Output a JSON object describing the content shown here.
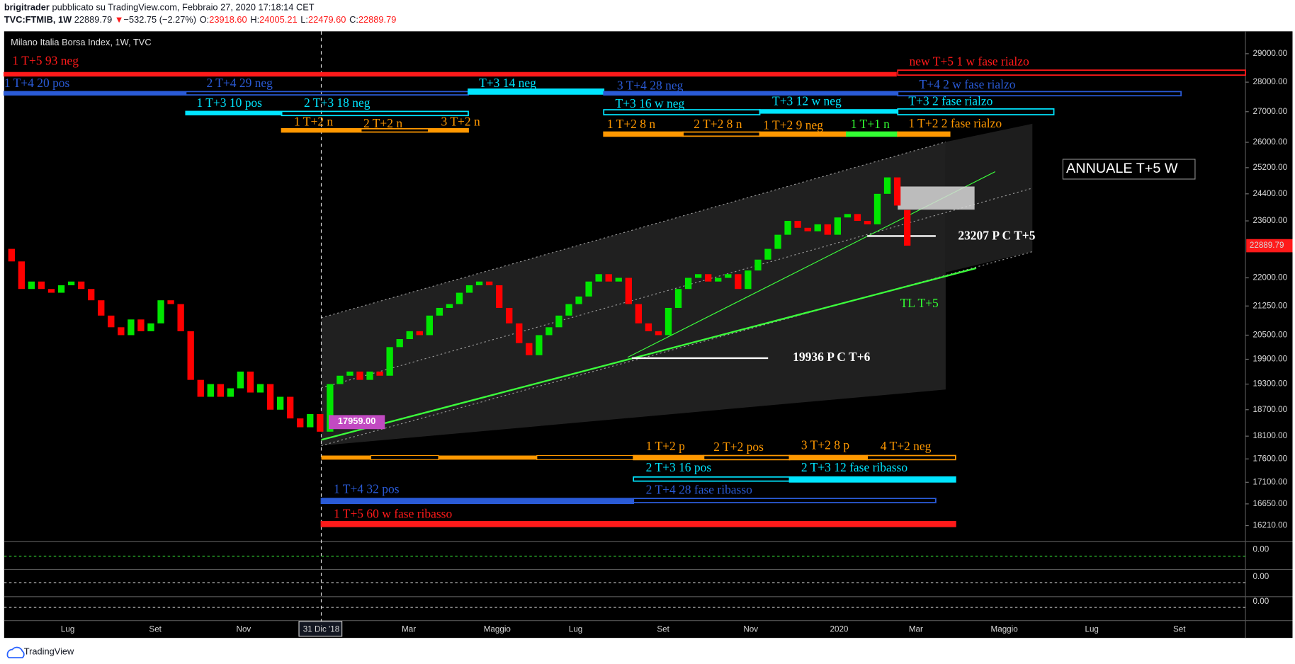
{
  "header": {
    "author": "brigitrader",
    "published": "pubblicato su TradingView.com, Febbraio 27, 2020 17:18:14 CET",
    "symbol": "TVC:FTMIB, 1W",
    "last": "22889.79",
    "arrow": "▼",
    "change": "−532.75 (−2.27%)",
    "ohlc": [
      {
        "label": "O:",
        "value": "23918.60"
      },
      {
        "label": "H:",
        "value": "24005.21"
      },
      {
        "label": "L:",
        "value": "22479.60"
      },
      {
        "label": "C:",
        "value": "22889.79"
      }
    ]
  },
  "pane_title": "Milano Italia Borsa Index, 1W, TVC",
  "chart": {
    "type": "candlestick",
    "scale": "log",
    "up_color": "#00e600",
    "down_color": "#ff0000",
    "open": [
      22800,
      22450,
      21700,
      21900,
      21700,
      21600,
      21800,
      21900,
      21700,
      21400,
      21000,
      20700,
      20500,
      20900,
      20600,
      20800,
      21400,
      21300,
      20600,
      19400,
      19000,
      19300,
      19000,
      19200,
      19600,
      19100,
      19300,
      18700,
      19000,
      18500,
      18300,
      18600,
      18200,
      19300,
      19500,
      19600,
      19400,
      19600,
      19500,
      20200,
      20400,
      20600,
      20500,
      21000,
      21200,
      21300,
      21600,
      21800,
      21900,
      21800,
      21200,
      20800,
      20300,
      20000,
      20500,
      20700,
      21000,
      21300,
      21500,
      21900,
      22100,
      21900,
      22000,
      21300,
      20800,
      20600,
      20500,
      21200,
      21700,
      22000,
      22100,
      21900,
      22000,
      22100,
      21700,
      22200,
      22500,
      22800,
      23200,
      23600,
      23400,
      23300,
      23500,
      23200,
      23700,
      23800,
      23600,
      23500,
      24400,
      24900,
      23918.6
    ],
    "close": [
      22450,
      21700,
      21900,
      21700,
      21600,
      21800,
      21900,
      21700,
      21400,
      21000,
      20700,
      20500,
      20900,
      20600,
      20800,
      21400,
      21300,
      20600,
      19400,
      19000,
      19300,
      19000,
      19200,
      19600,
      19100,
      19300,
      18700,
      19000,
      18500,
      18300,
      18600,
      18200,
      19300,
      19500,
      19600,
      19400,
      19600,
      19500,
      20200,
      20400,
      20600,
      20500,
      21000,
      21200,
      21300,
      21600,
      21800,
      21900,
      21800,
      21200,
      20800,
      20300,
      20000,
      20500,
      20700,
      21000,
      21300,
      21500,
      21900,
      22100,
      21900,
      22000,
      21300,
      20800,
      20600,
      20500,
      21200,
      21700,
      22000,
      22100,
      21900,
      22000,
      22100,
      21700,
      22200,
      22500,
      22800,
      23200,
      23600,
      23400,
      23300,
      23500,
      23200,
      23700,
      23800,
      23600,
      23500,
      24400,
      24900,
      24050,
      22889.79
    ],
    "ylim": [
      15915,
      29810
    ],
    "yticks": [
      {
        "value": 29000,
        "label": "29000.00"
      },
      {
        "value": 28000,
        "label": "28000.00"
      },
      {
        "value": 27000,
        "label": "27000.00"
      },
      {
        "value": 26000,
        "label": "26000.00"
      },
      {
        "value": 25200,
        "label": "25200.00"
      },
      {
        "value": 24400,
        "label": "24400.00"
      },
      {
        "value": 23600,
        "label": "23600.00"
      },
      {
        "value": 22000,
        "label": "22000.00"
      },
      {
        "value": 21250,
        "label": "21250.00"
      },
      {
        "value": 20500,
        "label": "20500.00"
      },
      {
        "value": 19900,
        "label": "19900.00"
      },
      {
        "value": 19300,
        "label": "19300.00"
      },
      {
        "value": 18700,
        "label": "18700.00"
      },
      {
        "value": 18100,
        "label": "18100.00"
      },
      {
        "value": 17600,
        "label": "17600.00"
      },
      {
        "value": 17100,
        "label": "17100.00"
      },
      {
        "value": 16650,
        "label": "16650.00"
      },
      {
        "value": 16210,
        "label": "16210.00"
      }
    ],
    "last_price": {
      "value": 22889.79,
      "label": "22889.79"
    },
    "low_label": "17959.00"
  },
  "sub_panes": [
    {
      "yticks": [
        {
          "value": 0,
          "label": "0.00"
        }
      ]
    },
    {
      "yticks": [
        {
          "value": 0,
          "label": "0.00"
        }
      ]
    },
    {
      "yticks": [
        {
          "value": 0,
          "label": "0.00"
        }
      ]
    }
  ],
  "time_labels": [
    "Lug",
    "Set",
    "Nov",
    "31 Dic '18",
    "Mar",
    "Maggio",
    "Lug",
    "Set",
    "Nov",
    "2020",
    "Mar",
    "Maggio",
    "Lug",
    "Set"
  ],
  "annotations": [
    {
      "text": "1 T+5 93 neg",
      "color": "#ff1a1a"
    },
    {
      "text": "new T+5 1 w fase rialzo",
      "color": "#ff1a1a"
    },
    {
      "text": "1 T+4 20 pos",
      "color": "#2a5bd7"
    },
    {
      "text": "2 T+4 29 neg",
      "color": "#2a5bd7"
    },
    {
      "text": "T+3 14 neg",
      "color": "#00e5ff"
    },
    {
      "text": "3 T+4 28  neg",
      "color": "#2a5bd7"
    },
    {
      "text": "T+4 2 w fase rialzo",
      "color": "#2a5bd7"
    },
    {
      "text": "1 T+3 10 pos",
      "color": "#00e5ff"
    },
    {
      "text": "2 T+3 18 neg",
      "color": "#00e5ff"
    },
    {
      "text": "T+3 16 w neg",
      "color": "#00e5ff"
    },
    {
      "text": "T+3 12 w neg",
      "color": "#00e5ff"
    },
    {
      "text": "T+3 2 fase rialzo",
      "color": "#00e5ff"
    },
    {
      "text": "1 T+2 n",
      "color": "#ff9800"
    },
    {
      "text": "2 T+2 n",
      "color": "#ff9800"
    },
    {
      "text": "3 T+2 n",
      "color": "#ff9800"
    },
    {
      "text": "1 T+2 8 n",
      "color": "#ff9800"
    },
    {
      "text": "2 T+2 8 n",
      "color": "#ff9800"
    },
    {
      "text": "1 T+2 9 neg",
      "color": "#ff9800"
    },
    {
      "text": "1 T+1 n",
      "color": "#33ff33"
    },
    {
      "text": "1 T+2 2 fase rialzo",
      "color": "#ff9800"
    },
    {
      "text": "1 T+2 p",
      "color": "#ff9800"
    },
    {
      "text": "2 T+2 pos",
      "color": "#ff9800"
    },
    {
      "text": "3 T+2 8 p",
      "color": "#ff9800"
    },
    {
      "text": "4 T+2 neg",
      "color": "#ff9800"
    },
    {
      "text": "2 T+3 16 pos",
      "color": "#00e5ff"
    },
    {
      "text": "2 T+3 12 fase ribasso",
      "color": "#00e5ff"
    },
    {
      "text": "1 T+4 32 pos",
      "color": "#2a5bd7"
    },
    {
      "text": "2  T+4 28 fase ribasso",
      "color": "#2a5bd7"
    },
    {
      "text": "1 T+5 60 w fase ribasso",
      "color": "#ff1a1a"
    }
  ],
  "notes": {
    "annuale": "ANNUALE T+5 W",
    "pc5": "23207 P C T+5",
    "pc6": "19936 P C T+6",
    "tl": "TL T+5"
  },
  "footer": "TradingView"
}
